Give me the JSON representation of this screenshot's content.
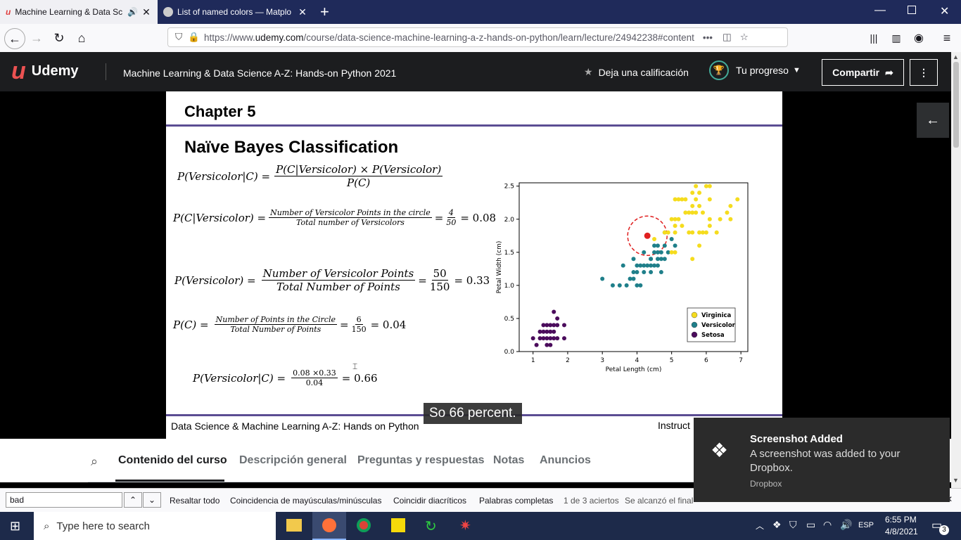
{
  "browser": {
    "tabs": [
      {
        "title": "Machine Learning & Data Sc"
      },
      {
        "title": "List of named colors — Matplo"
      }
    ],
    "url_prefix": "https://www.",
    "url_domain": "udemy.com",
    "url_path": "/course/data-science-machine-learning-a-z-hands-on-python/learn/lecture/24942238#content",
    "menu_dots": "•••"
  },
  "udemy": {
    "logo": "Udemy",
    "course_title": "Machine Learning & Data Science A-Z: Hands-on Python 2021",
    "rate_label": "Deja una calificación",
    "progress_label": "Tu progreso",
    "share_label": "Compartir"
  },
  "slide": {
    "chapter": "Chapter 5",
    "title": "Naïve Bayes Classification",
    "eq1_lhs": "P(Versicolor|C) =",
    "eq1_num": "P(C|Versicolor) × P(Versicolor)",
    "eq1_den": "P(C)",
    "eq2_lhs": "P(C|Versicolor) =",
    "eq2_num": "Number of Versicolor Points in the circle",
    "eq2_den": "Total number of Versicolors",
    "eq2_eq": "=",
    "eq2_n": "4",
    "eq2_d": "50",
    "eq2_res": "= 0.08",
    "eq3_lhs": "P(Versicolor) =",
    "eq3_num": "Number of Versicolor Points",
    "eq3_den": "Total Number of Points",
    "eq3_eq": "=",
    "eq3_n": "50",
    "eq3_d": "150",
    "eq3_res": "= 0.33",
    "eq4_lhs": "P(C) =",
    "eq4_num": "Number of Points in the Circle",
    "eq4_den": "Total Number of Points",
    "eq4_eq": "=",
    "eq4_n": "6",
    "eq4_d": "150",
    "eq4_res": "= 0.04",
    "eq5_lhs": "P(Versicolor|C) =",
    "eq5_n": "0.08 ×0.33",
    "eq5_d": "0.04",
    "eq5_res": "= 0.66",
    "footer_left": "Data Science & Machine Learning A-Z: Hands on Python",
    "footer_right": "Instruct",
    "caption": "So 66 percent."
  },
  "chart_data": {
    "type": "scatter",
    "xlabel": "Petal Length (cm)",
    "ylabel": "Petal Width (cm)",
    "xlim": [
      0.6,
      7.2
    ],
    "ylim": [
      0,
      2.55
    ],
    "xticks": [
      "1",
      "2",
      "3",
      "4",
      "5",
      "6",
      "7"
    ],
    "yticks": [
      "0.0",
      "0.5",
      "1.0",
      "1.5",
      "2.0",
      "2.5"
    ],
    "legend": [
      "Virginica",
      "Versicolor",
      "Setosa"
    ],
    "legend_position": "lower-right",
    "colors": {
      "Virginica": "#f5dc1e",
      "Versicolor": "#1f7f8a",
      "Setosa": "#4b0c5c",
      "query": "#e02020"
    },
    "series": [
      {
        "name": "Setosa",
        "points": [
          [
            1.0,
            0.2
          ],
          [
            1.1,
            0.1
          ],
          [
            1.2,
            0.2
          ],
          [
            1.3,
            0.2
          ],
          [
            1.3,
            0.3
          ],
          [
            1.4,
            0.2
          ],
          [
            1.4,
            0.1
          ],
          [
            1.4,
            0.3
          ],
          [
            1.5,
            0.2
          ],
          [
            1.5,
            0.4
          ],
          [
            1.5,
            0.1
          ],
          [
            1.6,
            0.2
          ],
          [
            1.6,
            0.4
          ],
          [
            1.6,
            0.6
          ],
          [
            1.7,
            0.2
          ],
          [
            1.7,
            0.4
          ],
          [
            1.7,
            0.5
          ],
          [
            1.9,
            0.2
          ],
          [
            1.9,
            0.4
          ],
          [
            1.5,
            0.3
          ],
          [
            1.4,
            0.4
          ],
          [
            1.6,
            0.3
          ],
          [
            1.3,
            0.4
          ],
          [
            1.2,
            0.3
          ]
        ]
      },
      {
        "name": "Versicolor",
        "points": [
          [
            3.0,
            1.1
          ],
          [
            3.3,
            1.0
          ],
          [
            3.5,
            1.0
          ],
          [
            3.6,
            1.3
          ],
          [
            3.7,
            1.0
          ],
          [
            3.8,
            1.1
          ],
          [
            3.9,
            1.1
          ],
          [
            3.9,
            1.2
          ],
          [
            3.9,
            1.4
          ],
          [
            4.0,
            1.0
          ],
          [
            4.0,
            1.2
          ],
          [
            4.0,
            1.3
          ],
          [
            4.1,
            1.0
          ],
          [
            4.1,
            1.3
          ],
          [
            4.2,
            1.2
          ],
          [
            4.2,
            1.3
          ],
          [
            4.2,
            1.5
          ],
          [
            4.3,
            1.3
          ],
          [
            4.4,
            1.2
          ],
          [
            4.4,
            1.3
          ],
          [
            4.4,
            1.4
          ],
          [
            4.5,
            1.3
          ],
          [
            4.5,
            1.5
          ],
          [
            4.5,
            1.6
          ],
          [
            4.6,
            1.3
          ],
          [
            4.6,
            1.4
          ],
          [
            4.6,
            1.5
          ],
          [
            4.7,
            1.2
          ],
          [
            4.7,
            1.4
          ],
          [
            4.7,
            1.5
          ],
          [
            4.8,
            1.4
          ],
          [
            4.8,
            1.8
          ],
          [
            4.9,
            1.5
          ],
          [
            5.0,
            1.7
          ],
          [
            5.1,
            1.6
          ],
          [
            4.4,
            1.4
          ],
          [
            4.6,
            1.6
          ],
          [
            4.8,
            1.6
          ]
        ]
      },
      {
        "name": "Virginica",
        "points": [
          [
            4.5,
            1.7
          ],
          [
            4.8,
            1.8
          ],
          [
            4.9,
            1.8
          ],
          [
            5.0,
            1.5
          ],
          [
            5.0,
            2.0
          ],
          [
            5.1,
            1.5
          ],
          [
            5.1,
            1.8
          ],
          [
            5.1,
            1.9
          ],
          [
            5.1,
            2.0
          ],
          [
            5.1,
            2.3
          ],
          [
            5.2,
            2.0
          ],
          [
            5.2,
            2.3
          ],
          [
            5.3,
            1.9
          ],
          [
            5.3,
            2.3
          ],
          [
            5.4,
            2.1
          ],
          [
            5.4,
            2.3
          ],
          [
            5.5,
            1.8
          ],
          [
            5.5,
            2.1
          ],
          [
            5.6,
            1.8
          ],
          [
            5.6,
            2.1
          ],
          [
            5.6,
            2.2
          ],
          [
            5.6,
            2.4
          ],
          [
            5.6,
            1.4
          ],
          [
            5.7,
            2.1
          ],
          [
            5.7,
            2.3
          ],
          [
            5.7,
            2.5
          ],
          [
            5.8,
            1.8
          ],
          [
            5.8,
            2.2
          ],
          [
            5.8,
            2.4
          ],
          [
            5.9,
            1.8
          ],
          [
            5.9,
            2.1
          ],
          [
            5.8,
            1.6
          ],
          [
            6.0,
            1.8
          ],
          [
            6.0,
            2.5
          ],
          [
            6.1,
            1.9
          ],
          [
            6.1,
            2.3
          ],
          [
            6.1,
            2.5
          ],
          [
            6.3,
            1.8
          ],
          [
            6.6,
            2.1
          ],
          [
            6.7,
            2.0
          ],
          [
            6.7,
            2.2
          ],
          [
            6.9,
            2.3
          ],
          [
            6.4,
            2.0
          ],
          [
            6.1,
            2.0
          ]
        ]
      }
    ],
    "query_point": [
      4.3,
      1.75
    ]
  },
  "course_tabs": [
    "Contenido del curso",
    "Descripción general",
    "Preguntas y respuestas",
    "Notas",
    "Anuncios"
  ],
  "findbar": {
    "query": "bad",
    "highlight_all": "Resaltar todo",
    "match_case": "Coincidencia de mayúsculas/minúsculas",
    "diacritics": "Coincidir diacríticos",
    "whole_words": "Palabras completas",
    "matches": "1 de 3 aciertos",
    "status": "Se alcanzó el final"
  },
  "toast": {
    "title": "Screenshot Added",
    "body": "A screenshot was added to your Dropbox.",
    "app": "Dropbox"
  },
  "taskbar": {
    "search_placeholder": "Type here to search",
    "lang": "ESP",
    "time": "6:55 PM",
    "date": "4/8/2021",
    "notif_count": "3"
  }
}
